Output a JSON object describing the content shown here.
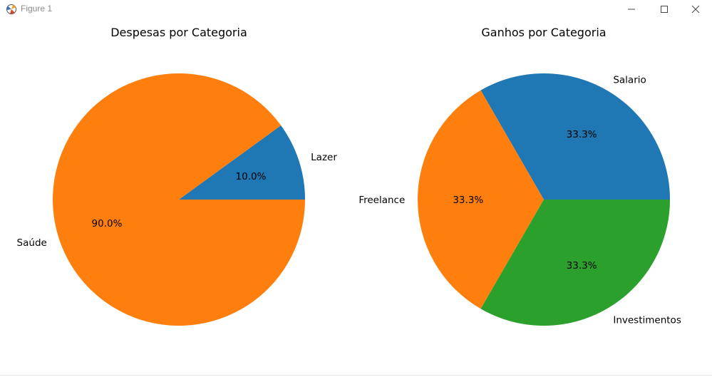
{
  "window": {
    "title": "Figure 1"
  },
  "chart_data": [
    {
      "type": "pie",
      "title": "Despesas por Categoria",
      "labels": [
        "Lazer",
        "Saúde"
      ],
      "values": [
        10.0,
        90.0
      ],
      "autopct": [
        "10.0%",
        "90.0%"
      ],
      "colors": [
        "#1f77b4",
        "#ff7f0e"
      ],
      "start_angle": 0,
      "direction": "counterclockwise"
    },
    {
      "type": "pie",
      "title": "Ganhos por Categoria",
      "labels": [
        "Salario",
        "Freelance",
        "Investimentos"
      ],
      "values": [
        33.3,
        33.3,
        33.3
      ],
      "autopct": [
        "33.3%",
        "33.3%",
        "33.3%"
      ],
      "colors": [
        "#1f77b4",
        "#ff7f0e",
        "#2ca02c"
      ],
      "start_angle": 0,
      "direction": "counterclockwise"
    }
  ]
}
